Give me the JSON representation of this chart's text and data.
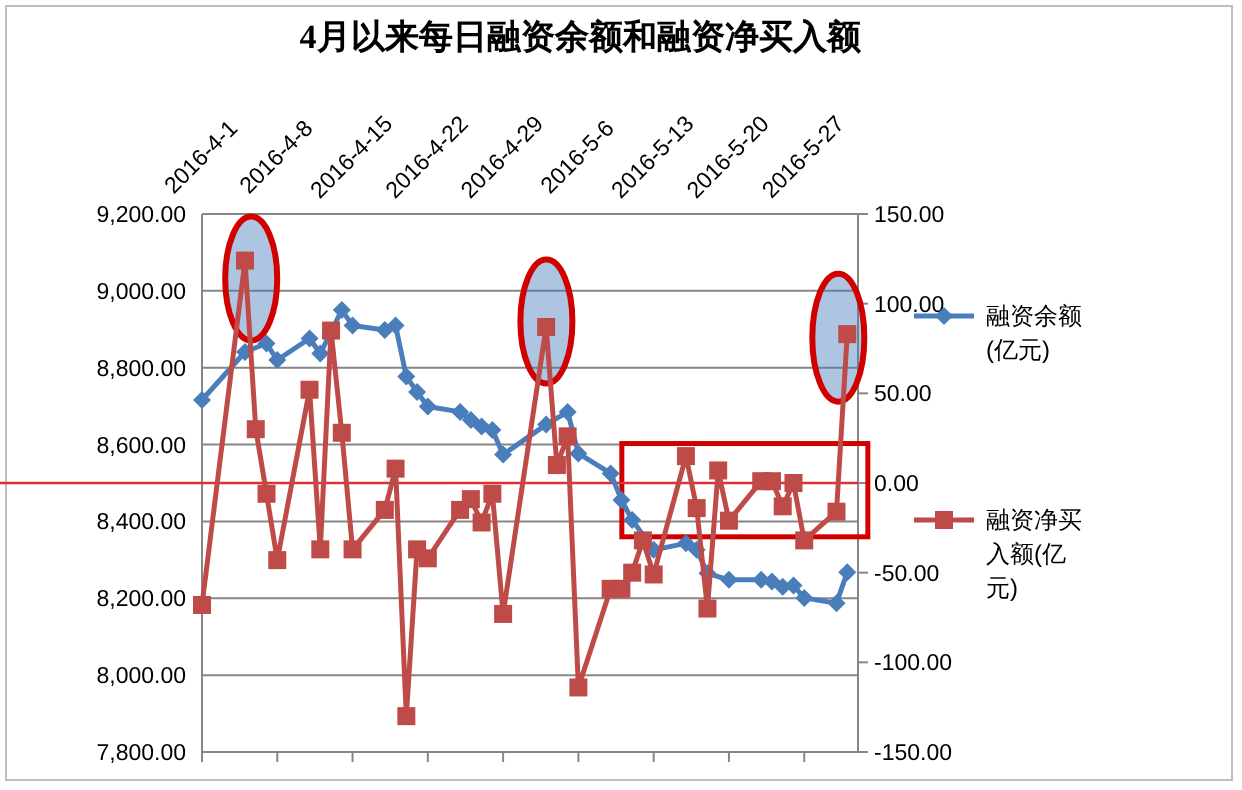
{
  "chart_data": {
    "type": "line",
    "title": "4月以来每日融资余额和融资净买入额",
    "xlim": [
      "2016-04-01",
      "2016-06-01"
    ],
    "xticks": [
      {
        "value": "2016-04-01",
        "label": "2016-4-1"
      },
      {
        "value": "2016-04-08",
        "label": "2016-4-8"
      },
      {
        "value": "2016-04-15",
        "label": "2016-4-15"
      },
      {
        "value": "2016-04-22",
        "label": "2016-4-22"
      },
      {
        "value": "2016-04-29",
        "label": "2016-4-29"
      },
      {
        "value": "2016-05-06",
        "label": "2016-5-6"
      },
      {
        "value": "2016-05-13",
        "label": "2016-5-13"
      },
      {
        "value": "2016-05-20",
        "label": "2016-5-20"
      },
      {
        "value": "2016-05-27",
        "label": "2016-5-27"
      }
    ],
    "ylim": [
      7800,
      9200
    ],
    "yticks": [
      {
        "value": 7800,
        "label": "7,800.00"
      },
      {
        "value": 8000,
        "label": "8,000.00"
      },
      {
        "value": 8200,
        "label": "8,200.00"
      },
      {
        "value": 8400,
        "label": "8,400.00"
      },
      {
        "value": 8600,
        "label": "8,600.00"
      },
      {
        "value": 8800,
        "label": "8,800.00"
      },
      {
        "value": 9000,
        "label": "9,000.00"
      },
      {
        "value": 9200,
        "label": "9,200.00"
      }
    ],
    "y2lim": [
      -150,
      150
    ],
    "y2ticks": [
      {
        "value": -150,
        "label": "-150.00"
      },
      {
        "value": -100,
        "label": "-100.00"
      },
      {
        "value": -50,
        "label": "-50.00"
      },
      {
        "value": 0,
        "label": "0.00"
      },
      {
        "value": 50,
        "label": "50.00"
      },
      {
        "value": 100,
        "label": "100.00"
      },
      {
        "value": 150,
        "label": "150.00"
      }
    ],
    "grid": "y",
    "legend": "right",
    "ref_lines": [
      {
        "axis": "y2",
        "value": 0,
        "color": "#e03030"
      }
    ],
    "series": [
      {
        "name": "融资余额(亿元)",
        "color": "#4a7ebb",
        "marker": "diamond",
        "x": [
          "2016-04-01",
          "2016-04-05",
          "2016-04-07",
          "2016-04-08",
          "2016-04-11",
          "2016-04-12",
          "2016-04-14",
          "2016-04-15",
          "2016-04-18",
          "2016-04-19",
          "2016-04-20",
          "2016-04-21",
          "2016-04-22",
          "2016-04-25",
          "2016-04-26",
          "2016-04-27",
          "2016-04-28",
          "2016-04-29",
          "2016-05-03",
          "2016-05-05",
          "2016-05-06",
          "2016-05-09",
          "2016-05-10",
          "2016-05-11",
          "2016-05-13",
          "2016-05-16",
          "2016-05-17",
          "2016-05-18",
          "2016-05-20",
          "2016-05-23",
          "2016-05-24",
          "2016-05-25",
          "2016-05-26",
          "2016-05-27",
          "2016-05-30",
          "2016-05-31"
        ],
        "values": [
          8716,
          8841,
          8863,
          8820,
          8876,
          8837,
          8950,
          8910,
          8898,
          8910,
          8777,
          8737,
          8699,
          8685,
          8664,
          8647,
          8638,
          8574,
          8652,
          8685,
          8577,
          8525,
          8456,
          8404,
          8326,
          8343,
          8326,
          8265,
          8248,
          8248,
          8244,
          8230,
          8233,
          8201,
          8187,
          8268
        ]
      },
      {
        "name": "融资净买入额(亿元)",
        "color": "#be4b48",
        "marker": "square",
        "axis": "y2",
        "x": [
          "2016-04-01",
          "2016-04-05",
          "2016-04-06",
          "2016-04-07",
          "2016-04-08",
          "2016-04-11",
          "2016-04-12",
          "2016-04-13",
          "2016-04-14",
          "2016-04-15",
          "2016-04-18",
          "2016-04-19",
          "2016-04-20",
          "2016-04-21",
          "2016-04-22",
          "2016-04-25",
          "2016-04-26",
          "2016-04-27",
          "2016-04-28",
          "2016-04-29",
          "2016-05-03",
          "2016-05-04",
          "2016-05-05",
          "2016-05-06",
          "2016-05-09",
          "2016-05-10",
          "2016-05-11",
          "2016-05-12",
          "2016-05-13",
          "2016-05-16",
          "2016-05-17",
          "2016-05-18",
          "2016-05-19",
          "2016-05-20",
          "2016-05-23",
          "2016-05-24",
          "2016-05-25",
          "2016-05-26",
          "2016-05-27",
          "2016-05-30",
          "2016-05-31"
        ],
        "values": [
          -68,
          124,
          30,
          -6,
          -43,
          52,
          -37,
          85,
          28,
          -37,
          -15,
          8,
          -130,
          -37,
          -42,
          -15,
          -9,
          -22,
          -6,
          -73,
          87,
          10,
          26,
          -114,
          -59,
          -59,
          -50,
          -32,
          -51,
          15,
          -14,
          -70,
          7,
          -21,
          1,
          1,
          -13,
          0,
          -32,
          -16,
          83
        ]
      }
    ]
  }
}
